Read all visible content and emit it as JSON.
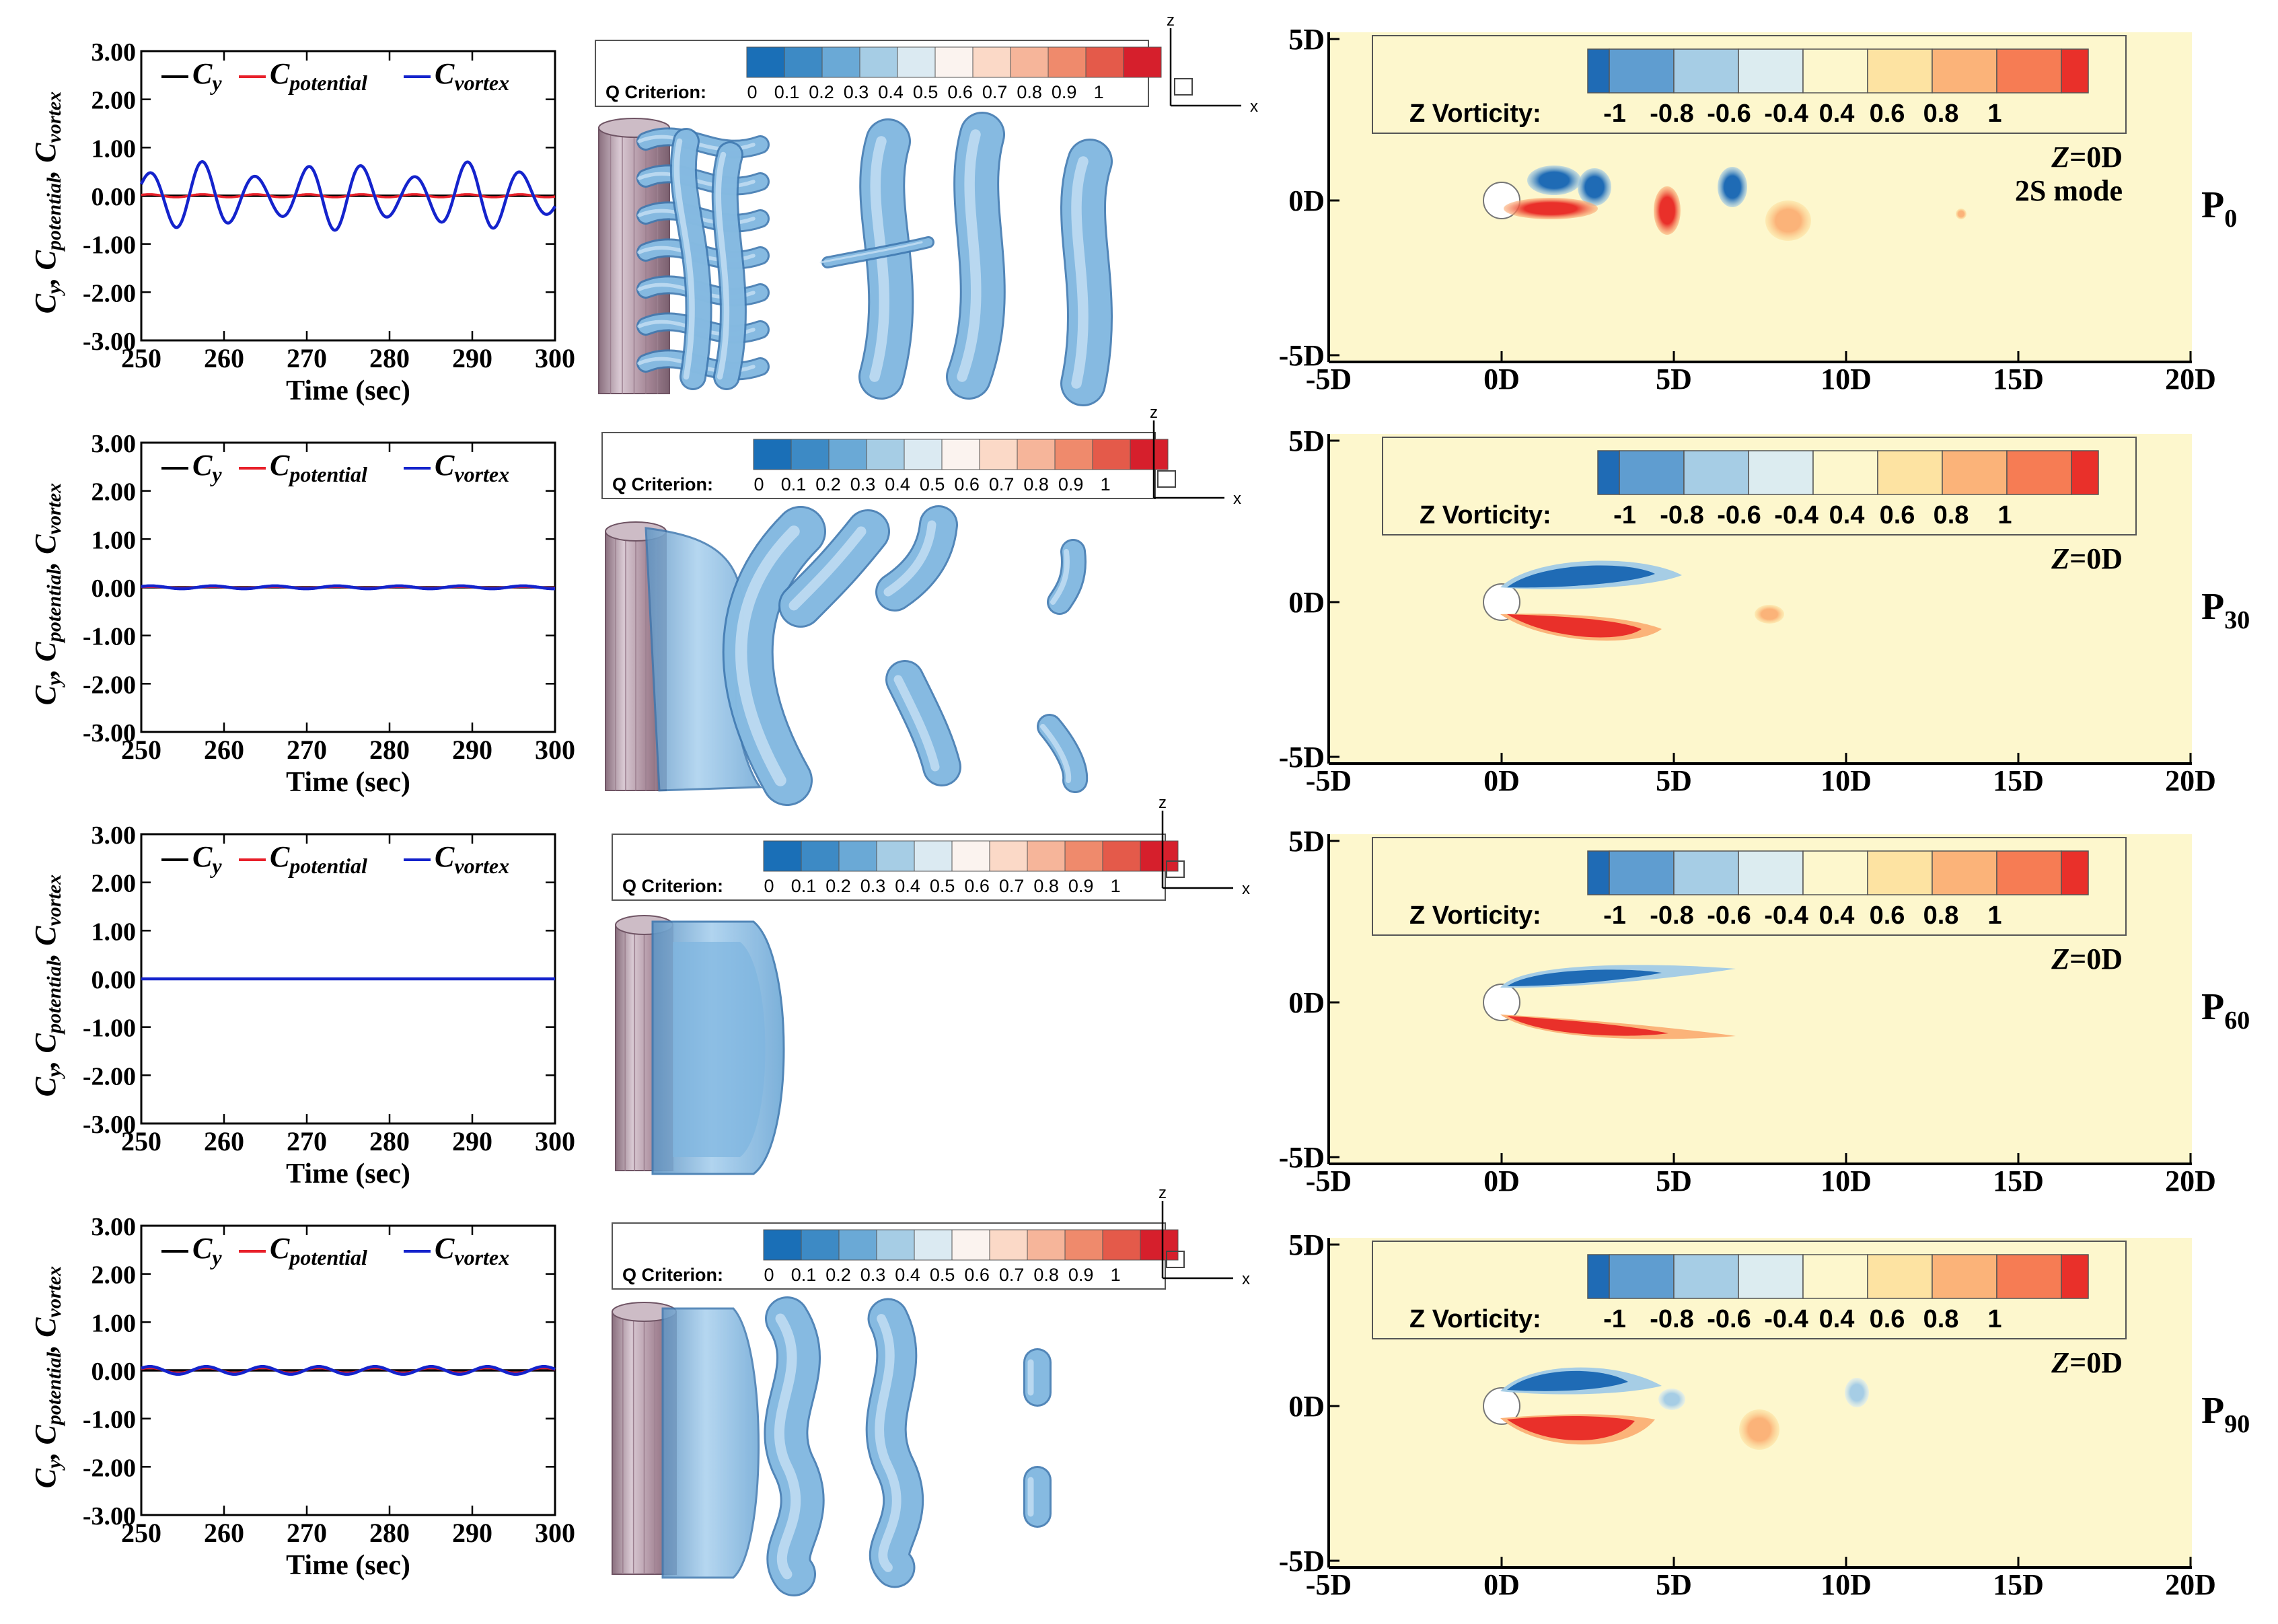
{
  "colors": {
    "cy": "#000000",
    "cpotential": "#e8202a",
    "cvortex": "#1423cc",
    "wake_bg": "#fdf7cd",
    "q_colormap": [
      "#1a6fb7",
      "#3d8ac5",
      "#6aa9d6",
      "#a6cde5",
      "#dbeaf2",
      "#fbf3ef",
      "#fbd9c7",
      "#f6b59a",
      "#ef8a6c",
      "#e45a4a",
      "#d61f2c"
    ],
    "vort_colormap": [
      "#1f6bb5",
      "#5f9dd0",
      "#a6cde5",
      "#dcecf0",
      "#fdf7cd",
      "#fde3a2",
      "#fbb379",
      "#f67c54",
      "#e9302a"
    ]
  },
  "legend": {
    "cy": "C",
    "cy_sub": "y",
    "cpot": "C",
    "cpot_sub": "potential",
    "cvor": "C",
    "cvor_sub": "vortex"
  },
  "ylabel": {
    "a": "C",
    "a_sub": "y",
    "b": ", C",
    "b_sub": "potential",
    "c": ", C",
    "c_sub": "vortex"
  },
  "qbar": {
    "label": "Q Criterion:",
    "ticks": [
      "0",
      "0.1",
      "0.2",
      "0.3",
      "0.4",
      "0.5",
      "0.6",
      "0.7",
      "0.8",
      "0.9",
      "1"
    ]
  },
  "vbar": {
    "label": "Z Vorticity:",
    "ticks": [
      "-1",
      "-0.8",
      "-0.6",
      "-0.4",
      "0.4",
      "0.6",
      "0.8",
      "1"
    ]
  },
  "axes3d": {
    "z": "z",
    "x": "x"
  },
  "zlabel_prefix": "Z",
  "zlabel_suffix": "=0D",
  "mode_label": "2S mode",
  "chart_data": [
    {
      "type": "line",
      "row": 0,
      "xlabel": "Time (sec)",
      "xlim": [
        250,
        300
      ],
      "ylim": [
        -3,
        3
      ],
      "xticks": [
        "250",
        "260",
        "270",
        "280",
        "290",
        "300"
      ],
      "yticks": [
        "3.00",
        "2.00",
        "1.00",
        "0.00",
        "-1.00",
        "-2.00",
        "-3.00"
      ],
      "series": [
        {
          "name": "Cy",
          "amplitude": 0.0,
          "period": 6.4
        },
        {
          "name": "Cpotential",
          "amplitude": 0.03,
          "period": 6.4
        },
        {
          "name": "Cvortex",
          "amplitude": 0.55,
          "period": 6.4,
          "modulation": 0.3
        }
      ]
    },
    {
      "type": "line",
      "row": 1,
      "xlabel": "Time (sec)",
      "xlim": [
        250,
        300
      ],
      "ylim": [
        -3,
        3
      ],
      "xticks": [
        "250",
        "260",
        "270",
        "280",
        "290",
        "300"
      ],
      "yticks": [
        "3.00",
        "2.00",
        "1.00",
        "0.00",
        "-1.00",
        "-2.00",
        "-3.00"
      ],
      "series": [
        {
          "name": "Cy",
          "amplitude": 0.0,
          "period": 7.5
        },
        {
          "name": "Cpotential",
          "amplitude": 0.01,
          "period": 7.5
        },
        {
          "name": "Cvortex",
          "amplitude": 0.03,
          "period": 7.5
        }
      ]
    },
    {
      "type": "line",
      "row": 2,
      "xlabel": "Time (sec)",
      "xlim": [
        250,
        300
      ],
      "ylim": [
        -3,
        3
      ],
      "xticks": [
        "250",
        "260",
        "270",
        "280",
        "290",
        "300"
      ],
      "yticks": [
        "3.00",
        "2.00",
        "1.00",
        "0.00",
        "-1.00",
        "-2.00",
        "-3.00"
      ],
      "series": [
        {
          "name": "Cy",
          "amplitude": 0.0,
          "period": 8
        },
        {
          "name": "Cpotential",
          "amplitude": 0.0,
          "period": 8
        },
        {
          "name": "Cvortex",
          "amplitude": 0.0,
          "period": 8
        }
      ]
    },
    {
      "type": "line",
      "row": 3,
      "xlabel": "Time (sec)",
      "xlim": [
        250,
        300
      ],
      "ylim": [
        -3,
        3
      ],
      "xticks": [
        "250",
        "260",
        "270",
        "280",
        "290",
        "300"
      ],
      "yticks": [
        "3.00",
        "2.00",
        "1.00",
        "0.00",
        "-1.00",
        "-2.00",
        "-3.00"
      ],
      "series": [
        {
          "name": "Cy",
          "amplitude": 0.0,
          "period": 6.8
        },
        {
          "name": "Cpotential",
          "amplitude": 0.05,
          "period": 6.8
        },
        {
          "name": "Cvortex",
          "amplitude": 0.08,
          "period": 6.8
        }
      ]
    },
    {
      "type": "heatmap",
      "row": 0,
      "label": "P",
      "label_sub": "0",
      "xlim": [
        "-5D",
        "20D"
      ],
      "ylim": [
        "-5D",
        "5D"
      ],
      "xticks": [
        "-5D",
        "0D",
        "5D",
        "10D",
        "15D",
        "20D"
      ],
      "yticks": [
        "5D",
        "0D",
        "-5D"
      ]
    },
    {
      "type": "heatmap",
      "row": 1,
      "label": "P",
      "label_sub": "30",
      "xlim": [
        "-5D",
        "20D"
      ],
      "ylim": [
        "-5D",
        "5D"
      ],
      "xticks": [
        "-5D",
        "0D",
        "5D",
        "10D",
        "15D",
        "20D"
      ],
      "yticks": [
        "5D",
        "0D",
        "-5D"
      ]
    },
    {
      "type": "heatmap",
      "row": 2,
      "label": "P",
      "label_sub": "60",
      "xlim": [
        "-5D",
        "20D"
      ],
      "ylim": [
        "-5D",
        "5D"
      ],
      "xticks": [
        "-5D",
        "0D",
        "5D",
        "10D",
        "15D",
        "20D"
      ],
      "yticks": [
        "5D",
        "0D",
        "-5D"
      ]
    },
    {
      "type": "heatmap",
      "row": 3,
      "label": "P",
      "label_sub": "90",
      "xlim": [
        "-5D",
        "20D"
      ],
      "ylim": [
        "-5D",
        "5D"
      ],
      "xticks": [
        "-5D",
        "0D",
        "5D",
        "10D",
        "15D",
        "20D"
      ],
      "yticks": [
        "5D",
        "0D",
        "-5D"
      ]
    }
  ]
}
